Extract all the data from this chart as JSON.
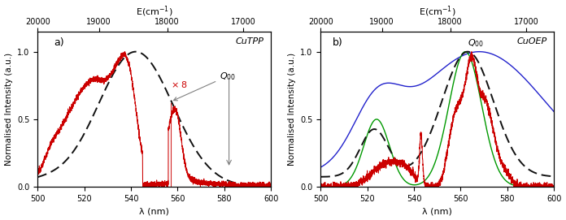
{
  "xlim": [
    500,
    600
  ],
  "ylim": [
    0.0,
    1.15
  ],
  "yticks": [
    0.0,
    0.5,
    1.0
  ],
  "xticks": [
    500,
    520,
    540,
    560,
    580,
    600
  ],
  "energy_ticks": [
    20000,
    19000,
    18000,
    17000
  ],
  "xlabel": "λ (nm)",
  "ylabel_a": "Normalised Intensity (a.u.)",
  "ylabel_b": "Normalised Intensity (a.u.)",
  "panel_a_label": "a)",
  "panel_b_label": "b)",
  "panel_a_title": "CuTPP",
  "panel_b_title": "CuOEP",
  "background": "#ffffff",
  "red_color": "#cc0000",
  "blue_color": "#2222cc",
  "green_color": "#009900",
  "black_color": "#111111"
}
